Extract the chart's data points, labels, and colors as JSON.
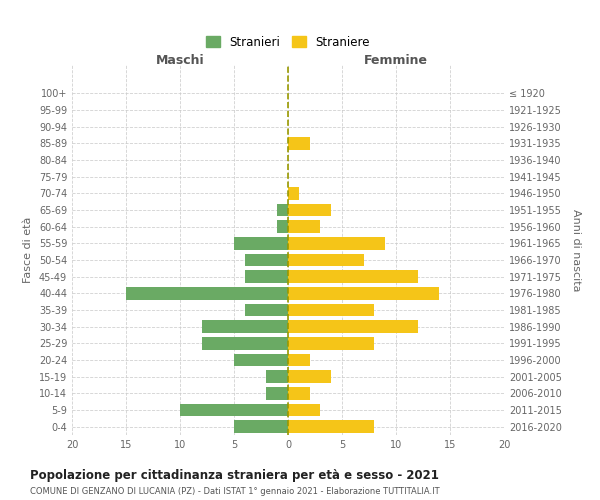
{
  "age_groups": [
    "0-4",
    "5-9",
    "10-14",
    "15-19",
    "20-24",
    "25-29",
    "30-34",
    "35-39",
    "40-44",
    "45-49",
    "50-54",
    "55-59",
    "60-64",
    "65-69",
    "70-74",
    "75-79",
    "80-84",
    "85-89",
    "90-94",
    "95-99",
    "100+"
  ],
  "birth_years": [
    "2016-2020",
    "2011-2015",
    "2006-2010",
    "2001-2005",
    "1996-2000",
    "1991-1995",
    "1986-1990",
    "1981-1985",
    "1976-1980",
    "1971-1975",
    "1966-1970",
    "1961-1965",
    "1956-1960",
    "1951-1955",
    "1946-1950",
    "1941-1945",
    "1936-1940",
    "1931-1935",
    "1926-1930",
    "1921-1925",
    "≤ 1920"
  ],
  "males": [
    5,
    10,
    2,
    2,
    5,
    8,
    8,
    4,
    15,
    4,
    4,
    5,
    1,
    1,
    0,
    0,
    0,
    0,
    0,
    0,
    0
  ],
  "females": [
    8,
    3,
    2,
    4,
    2,
    8,
    12,
    8,
    14,
    12,
    7,
    9,
    3,
    4,
    1,
    0,
    0,
    2,
    0,
    0,
    0
  ],
  "male_color": "#6aaa64",
  "female_color": "#f5c518",
  "background_color": "#ffffff",
  "grid_color": "#cccccc",
  "title": "Popolazione per cittadinanza straniera per età e sesso - 2021",
  "subtitle": "COMUNE DI GENZANO DI LUCANIA (PZ) - Dati ISTAT 1° gennaio 2021 - Elaborazione TUTTITALIA.IT",
  "xlabel_left": "Maschi",
  "xlabel_right": "Femmine",
  "ylabel_left": "Fasce di età",
  "ylabel_right": "Anni di nascita",
  "legend_male": "Stranieri",
  "legend_female": "Straniere",
  "xlim": 20,
  "dashed_line_color": "#999900"
}
